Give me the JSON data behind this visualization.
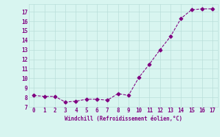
{
  "x": [
    0,
    1,
    2,
    3,
    4,
    5,
    6,
    7,
    8,
    9,
    10,
    11,
    12,
    13,
    14,
    15,
    16,
    17
  ],
  "y": [
    8.2,
    8.1,
    8.1,
    7.5,
    7.6,
    7.8,
    7.8,
    7.7,
    8.4,
    8.2,
    10.1,
    11.5,
    13.0,
    14.4,
    16.3,
    17.2,
    17.3,
    17.3
  ],
  "line_color": "#800080",
  "marker": "D",
  "marker_size": 2.5,
  "background_color": "#d8f5f0",
  "grid_color": "#b8ddd8",
  "xlabel": "Windchill (Refroidissement éolien,°C)",
  "xlabel_color": "#800080",
  "tick_color": "#800080",
  "ylim": [
    7,
    17.8
  ],
  "xlim": [
    -0.5,
    17.5
  ],
  "yticks": [
    7,
    8,
    9,
    10,
    11,
    12,
    13,
    14,
    15,
    16,
    17
  ],
  "xticks": [
    0,
    1,
    2,
    3,
    4,
    5,
    6,
    7,
    8,
    9,
    10,
    11,
    12,
    13,
    14,
    15,
    16,
    17
  ]
}
